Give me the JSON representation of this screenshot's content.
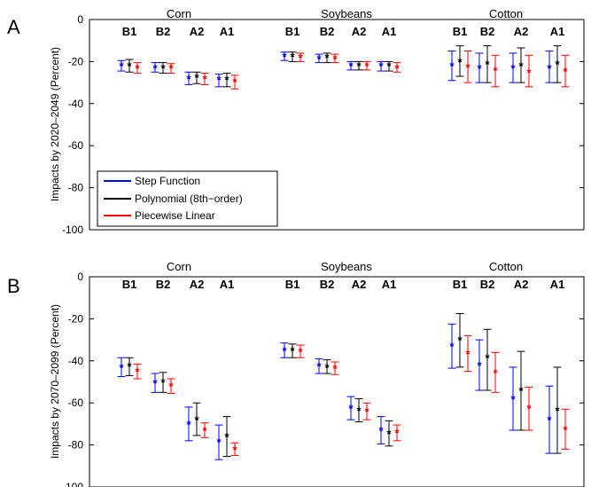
{
  "chart_data": [
    {
      "type": "scatter",
      "panel_letter": "A",
      "ylabel": "Impacts by 2020–2049 (Percent)",
      "ylim": [
        -100,
        0
      ],
      "yticks": [
        0,
        -20,
        -40,
        -60,
        -80,
        -100
      ],
      "groups": [
        "Corn",
        "Soybeans",
        "Cotton"
      ],
      "scenarios": [
        "B1",
        "B2",
        "A2",
        "A1"
      ],
      "legend": {
        "placement": "bottom-left",
        "entries": [
          {
            "name": "Step Function",
            "color": "#0000ff"
          },
          {
            "name": "Polynomial (8th−order)",
            "color": "#000000"
          },
          {
            "name": "Piecewise Linear",
            "color": "#ff0000"
          }
        ]
      },
      "series": [
        {
          "name": "Step Function",
          "color": "#0000ff",
          "values": [
            {
              "group": "Corn",
              "scenario": "B1",
              "mean": -22,
              "low": -24.5,
              "high": -19.5
            },
            {
              "group": "Corn",
              "scenario": "B2",
              "mean": -23,
              "low": -25,
              "high": -20.5
            },
            {
              "group": "Corn",
              "scenario": "A2",
              "mean": -28,
              "low": -31,
              "high": -25
            },
            {
              "group": "Corn",
              "scenario": "A1",
              "mean": -28.5,
              "low": -32,
              "high": -26
            },
            {
              "group": "Soybeans",
              "scenario": "B1",
              "mean": -17.5,
              "low": -19.5,
              "high": -15.5
            },
            {
              "group": "Soybeans",
              "scenario": "B2",
              "mean": -18.5,
              "low": -20.5,
              "high": -16.5
            },
            {
              "group": "Soybeans",
              "scenario": "A2",
              "mean": -22,
              "low": -24,
              "high": -20
            },
            {
              "group": "Soybeans",
              "scenario": "A1",
              "mean": -22,
              "low": -24.5,
              "high": -20
            },
            {
              "group": "Cotton",
              "scenario": "B1",
              "mean": -22,
              "low": -29,
              "high": -15
            },
            {
              "group": "Cotton",
              "scenario": "B2",
              "mean": -23,
              "low": -30,
              "high": -16
            },
            {
              "group": "Cotton",
              "scenario": "A2",
              "mean": -23,
              "low": -30,
              "high": -16
            },
            {
              "group": "Cotton",
              "scenario": "A1",
              "mean": -23,
              "low": -30,
              "high": -15
            }
          ]
        },
        {
          "name": "Polynomial (8th−order)",
          "color": "#000000",
          "values": [
            {
              "group": "Corn",
              "scenario": "B1",
              "mean": -22,
              "low": -25,
              "high": -19
            },
            {
              "group": "Corn",
              "scenario": "B2",
              "mean": -23,
              "low": -25.5,
              "high": -20.5
            },
            {
              "group": "Corn",
              "scenario": "A2",
              "mean": -27.5,
              "low": -30.5,
              "high": -25
            },
            {
              "group": "Corn",
              "scenario": "A1",
              "mean": -28.5,
              "low": -32,
              "high": -25.5
            },
            {
              "group": "Soybeans",
              "scenario": "B1",
              "mean": -17.5,
              "low": -20,
              "high": -15.5
            },
            {
              "group": "Soybeans",
              "scenario": "B2",
              "mean": -18,
              "low": -20.5,
              "high": -16
            },
            {
              "group": "Soybeans",
              "scenario": "A2",
              "mean": -22,
              "low": -24,
              "high": -20
            },
            {
              "group": "Soybeans",
              "scenario": "A1",
              "mean": -22,
              "low": -24.5,
              "high": -20
            },
            {
              "group": "Cotton",
              "scenario": "B1",
              "mean": -20,
              "low": -27,
              "high": -12.5
            },
            {
              "group": "Cotton",
              "scenario": "B2",
              "mean": -21,
              "low": -30,
              "high": -12.5
            },
            {
              "group": "Cotton",
              "scenario": "A2",
              "mean": -22,
              "low": -30,
              "high": -13.5
            },
            {
              "group": "Cotton",
              "scenario": "A1",
              "mean": -21,
              "low": -30,
              "high": -12.5
            }
          ]
        },
        {
          "name": "Piecewise Linear",
          "color": "#ff0000",
          "values": [
            {
              "group": "Corn",
              "scenario": "B1",
              "mean": -23,
              "low": -25.5,
              "high": -20.5
            },
            {
              "group": "Corn",
              "scenario": "B2",
              "mean": -23,
              "low": -25.5,
              "high": -21
            },
            {
              "group": "Corn",
              "scenario": "A2",
              "mean": -28,
              "low": -31,
              "high": -25.5
            },
            {
              "group": "Corn",
              "scenario": "A1",
              "mean": -29.5,
              "low": -33,
              "high": -26.5
            },
            {
              "group": "Soybeans",
              "scenario": "B1",
              "mean": -18,
              "low": -20,
              "high": -16
            },
            {
              "group": "Soybeans",
              "scenario": "B2",
              "mean": -18.5,
              "low": -20.5,
              "high": -16.5
            },
            {
              "group": "Soybeans",
              "scenario": "A2",
              "mean": -22,
              "low": -24,
              "high": -20
            },
            {
              "group": "Soybeans",
              "scenario": "A1",
              "mean": -23,
              "low": -25,
              "high": -20.5
            },
            {
              "group": "Cotton",
              "scenario": "B1",
              "mean": -22.5,
              "low": -30,
              "high": -15
            },
            {
              "group": "Cotton",
              "scenario": "B2",
              "mean": -24,
              "low": -32,
              "high": -17
            },
            {
              "group": "Cotton",
              "scenario": "A2",
              "mean": -25,
              "low": -32,
              "high": -17
            },
            {
              "group": "Cotton",
              "scenario": "A1",
              "mean": -24.5,
              "low": -32,
              "high": -17
            }
          ]
        }
      ]
    },
    {
      "type": "scatter",
      "panel_letter": "B",
      "ylabel": "Impacts by 2070–2099 (Percent)",
      "ylim": [
        -100,
        0
      ],
      "yticks": [
        0,
        -20,
        -40,
        -60,
        -80,
        -100
      ],
      "groups": [
        "Corn",
        "Soybeans",
        "Cotton"
      ],
      "scenarios": [
        "B1",
        "B2",
        "A2",
        "A1"
      ],
      "series": [
        {
          "name": "Step Function",
          "color": "#0000ff",
          "values": [
            {
              "group": "Corn",
              "scenario": "B1",
              "mean": -43,
              "low": -47.5,
              "high": -38.5
            },
            {
              "group": "Corn",
              "scenario": "B2",
              "mean": -50.5,
              "low": -55,
              "high": -46
            },
            {
              "group": "Corn",
              "scenario": "A2",
              "mean": -70,
              "low": -78,
              "high": -62
            },
            {
              "group": "Corn",
              "scenario": "A1",
              "mean": -78.5,
              "low": -87,
              "high": -70.5
            },
            {
              "group": "Soybeans",
              "scenario": "B1",
              "mean": -35,
              "low": -38.5,
              "high": -31.5
            },
            {
              "group": "Soybeans",
              "scenario": "B2",
              "mean": -42.5,
              "low": -46,
              "high": -39
            },
            {
              "group": "Soybeans",
              "scenario": "A2",
              "mean": -62.5,
              "low": -68,
              "high": -57
            },
            {
              "group": "Soybeans",
              "scenario": "A1",
              "mean": -73,
              "low": -79.5,
              "high": -66.5
            },
            {
              "group": "Cotton",
              "scenario": "B1",
              "mean": -33,
              "low": -43.5,
              "high": -22.5
            },
            {
              "group": "Cotton",
              "scenario": "B2",
              "mean": -42,
              "low": -54,
              "high": -30
            },
            {
              "group": "Cotton",
              "scenario": "A2",
              "mean": -58,
              "low": -73,
              "high": -43
            },
            {
              "group": "Cotton",
              "scenario": "A1",
              "mean": -68,
              "low": -84,
              "high": -52
            }
          ]
        },
        {
          "name": "Polynomial (8th−order)",
          "color": "#000000",
          "values": [
            {
              "group": "Corn",
              "scenario": "B1",
              "mean": -42.5,
              "low": -47,
              "high": -38.5
            },
            {
              "group": "Corn",
              "scenario": "B2",
              "mean": -50,
              "low": -55,
              "high": -45.5
            },
            {
              "group": "Corn",
              "scenario": "A2",
              "mean": -68,
              "low": -75.5,
              "high": -60
            },
            {
              "group": "Corn",
              "scenario": "A1",
              "mean": -76,
              "low": -85.5,
              "high": -66.5
            },
            {
              "group": "Soybeans",
              "scenario": "B1",
              "mean": -35,
              "low": -38.5,
              "high": -32
            },
            {
              "group": "Soybeans",
              "scenario": "B2",
              "mean": -43,
              "low": -46,
              "high": -39.5
            },
            {
              "group": "Soybeans",
              "scenario": "A2",
              "mean": -63.5,
              "low": -69,
              "high": -58
            },
            {
              "group": "Soybeans",
              "scenario": "A1",
              "mean": -74.5,
              "low": -80.5,
              "high": -68.5
            },
            {
              "group": "Cotton",
              "scenario": "B1",
              "mean": -30,
              "low": -43,
              "high": -17.5
            },
            {
              "group": "Cotton",
              "scenario": "B2",
              "mean": -38.5,
              "low": -54,
              "high": -25
            },
            {
              "group": "Cotton",
              "scenario": "A2",
              "mean": -54,
              "low": -73,
              "high": -35.5
            },
            {
              "group": "Cotton",
              "scenario": "A1",
              "mean": -63.5,
              "low": -84,
              "high": -43
            }
          ]
        },
        {
          "name": "Piecewise Linear",
          "color": "#ff0000",
          "values": [
            {
              "group": "Corn",
              "scenario": "B1",
              "mean": -45,
              "low": -48.5,
              "high": -41.5
            },
            {
              "group": "Corn",
              "scenario": "B2",
              "mean": -52,
              "low": -55.5,
              "high": -48.5
            },
            {
              "group": "Corn",
              "scenario": "A2",
              "mean": -73,
              "low": -76.5,
              "high": -69.5
            },
            {
              "group": "Corn",
              "scenario": "A1",
              "mean": -82,
              "low": -85,
              "high": -79
            },
            {
              "group": "Soybeans",
              "scenario": "B1",
              "mean": -35.5,
              "low": -38.5,
              "high": -32.5
            },
            {
              "group": "Soybeans",
              "scenario": "B2",
              "mean": -43.5,
              "low": -46.5,
              "high": -40.5
            },
            {
              "group": "Soybeans",
              "scenario": "A2",
              "mean": -64,
              "low": -68,
              "high": -60
            },
            {
              "group": "Soybeans",
              "scenario": "A1",
              "mean": -74,
              "low": -78,
              "high": -70.5
            },
            {
              "group": "Cotton",
              "scenario": "B1",
              "mean": -36.5,
              "low": -45,
              "high": -28
            },
            {
              "group": "Cotton",
              "scenario": "B2",
              "mean": -45.5,
              "low": -55,
              "high": -36
            },
            {
              "group": "Cotton",
              "scenario": "A2",
              "mean": -62.5,
              "low": -73,
              "high": -52.5
            },
            {
              "group": "Cotton",
              "scenario": "A1",
              "mean": -72.5,
              "low": -82,
              "high": -63
            }
          ]
        }
      ]
    }
  ]
}
